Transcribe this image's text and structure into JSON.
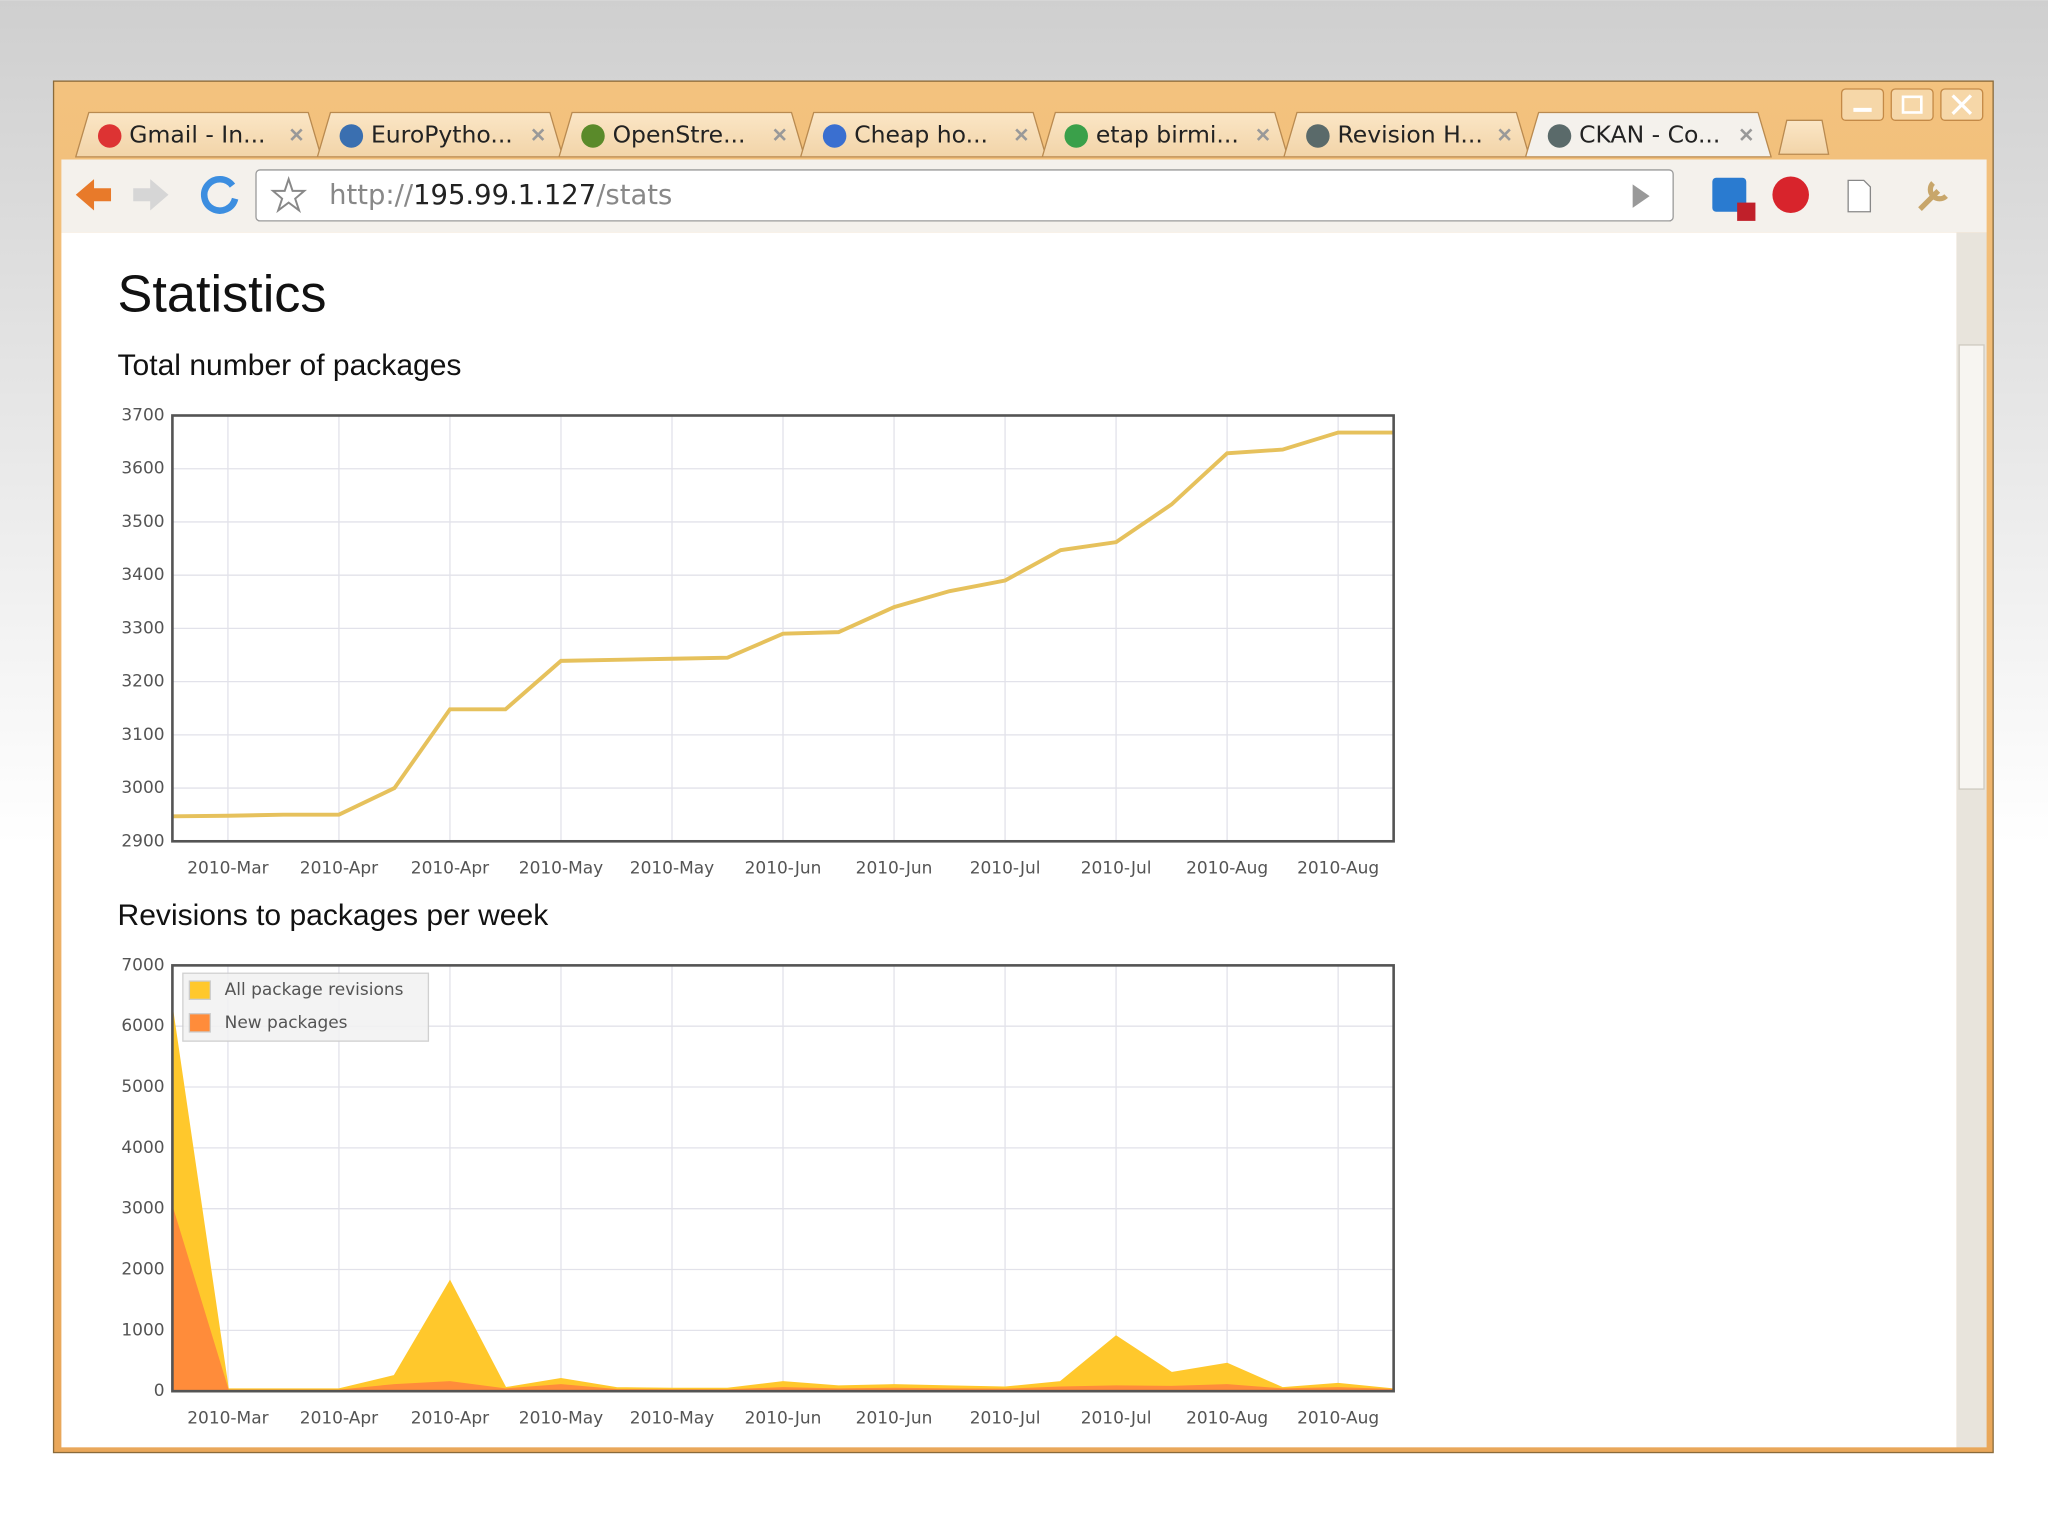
{
  "browser": {
    "tabs": [
      "Gmail - In...",
      "EuroPytho...",
      "OpenStre...",
      "Cheap ho...",
      "etap birmi...",
      "Revision H...",
      "CKAN - Co..."
    ],
    "url": {
      "scheme": "http://",
      "host": "195.99.1.127",
      "path": "/stats"
    }
  },
  "page": {
    "title": "Statistics"
  },
  "chart_data": [
    {
      "type": "line",
      "title": "Total number of packages",
      "categories": [
        null,
        "2010-Mar",
        null,
        "2010-Apr",
        null,
        "2010-Apr",
        null,
        "2010-May",
        null,
        "2010-May",
        null,
        "2010-Jun",
        null,
        "2010-Jun",
        null,
        "2010-Jul",
        null,
        "2010-Jul",
        null,
        "2010-Aug",
        null,
        "2010-Aug",
        null
      ],
      "values": [
        2947,
        2948,
        2950,
        2950,
        3000,
        3148,
        3148,
        3239,
        3241,
        3243,
        3245,
        3290,
        3293,
        3340,
        3370,
        3390,
        3447,
        3462,
        3533,
        3629,
        3636,
        3668,
        3668
      ],
      "color": "#e6c15c",
      "ylim": [
        2900,
        3700
      ],
      "yticks": [
        2900,
        3000,
        3100,
        3200,
        3300,
        3400,
        3500,
        3600,
        3700
      ],
      "grid": true
    },
    {
      "type": "area",
      "title": "Revisions to packages per week",
      "categories": [
        null,
        "2010-Mar",
        null,
        "2010-Apr",
        null,
        "2010-Apr",
        null,
        "2010-May",
        null,
        "2010-May",
        null,
        "2010-Jun",
        null,
        "2010-Jun",
        null,
        "2010-Jul",
        null,
        "2010-Jul",
        null,
        "2010-Aug",
        null,
        "2010-Aug",
        null
      ],
      "series": [
        {
          "name": "All package revisions",
          "color": "#ffc82c",
          "values": [
            6250,
            30,
            30,
            30,
            250,
            1800,
            50,
            200,
            50,
            40,
            40,
            150,
            80,
            100,
            80,
            60,
            150,
            900,
            300,
            450,
            50,
            120,
            30
          ]
        },
        {
          "name": "New packages",
          "color": "#ff8c3a",
          "values": [
            3000,
            10,
            10,
            10,
            100,
            150,
            30,
            100,
            20,
            15,
            15,
            50,
            30,
            40,
            30,
            25,
            60,
            80,
            70,
            100,
            30,
            50,
            20
          ]
        }
      ],
      "ylim": [
        0,
        7000
      ],
      "yticks": [
        0,
        1000,
        2000,
        3000,
        4000,
        5000,
        6000,
        7000
      ],
      "grid": true,
      "legend": "upper left"
    }
  ]
}
